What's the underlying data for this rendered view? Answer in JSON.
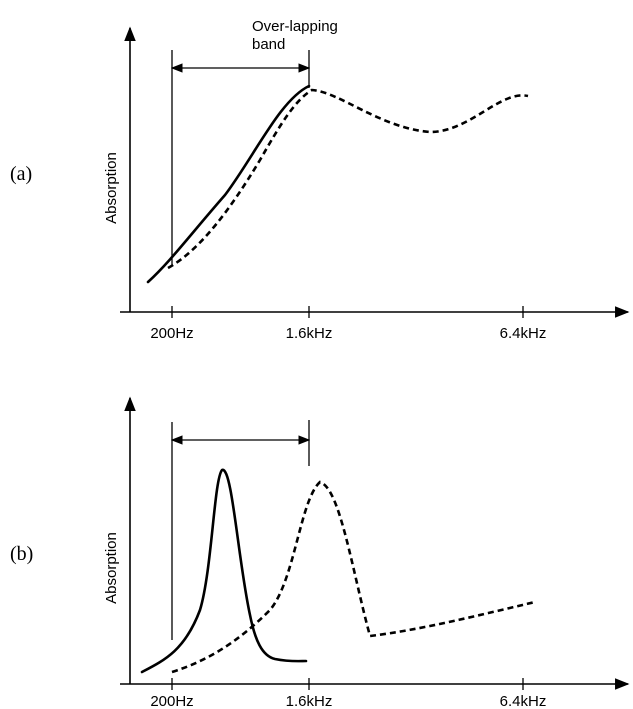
{
  "chart_data": [
    {
      "type": "line",
      "panel_label": "(a)",
      "ylabel": "Absorption",
      "xaxis": {
        "scale": "log",
        "ticks": [
          "200Hz",
          "1.6kHz",
          "6.4kHz"
        ]
      },
      "band": {
        "from": "200Hz",
        "to": "1.6kHz",
        "label": "Over-lapping band"
      },
      "series": [
        {
          "style": "solid",
          "x": [
            160,
            200,
            300,
            500,
            800,
            1200,
            1600
          ],
          "y": [
            0.05,
            0.1,
            0.25,
            0.45,
            0.65,
            0.82,
            0.9
          ]
        },
        {
          "style": "dashed",
          "x": [
            200,
            300,
            500,
            800,
            1200,
            1600,
            2200,
            3200,
            4200,
            5500,
            6400
          ],
          "y": [
            0.09,
            0.2,
            0.38,
            0.58,
            0.78,
            0.88,
            0.82,
            0.76,
            0.79,
            0.87,
            0.88
          ]
        }
      ]
    },
    {
      "type": "line",
      "panel_label": "(b)",
      "ylabel": "Absorption",
      "xaxis": {
        "scale": "log",
        "ticks": [
          "200Hz",
          "1.6kHz",
          "6.4kHz"
        ]
      },
      "band": {
        "from": "200Hz",
        "to": "1.6kHz"
      },
      "series": [
        {
          "style": "solid",
          "x": [
            150,
            200,
            280,
            340,
            380,
            420,
            460,
            500,
            600,
            900,
            1600
          ],
          "y": [
            0.04,
            0.08,
            0.2,
            0.4,
            0.72,
            0.88,
            0.8,
            0.5,
            0.1,
            0.04,
            0.03
          ]
        },
        {
          "style": "dashed",
          "x": [
            200,
            400,
            800,
            1400,
            1800,
            2200,
            2700,
            3200,
            6400
          ],
          "y": [
            0.02,
            0.12,
            0.3,
            0.7,
            0.85,
            0.7,
            0.22,
            0.2,
            0.35
          ]
        }
      ]
    }
  ]
}
